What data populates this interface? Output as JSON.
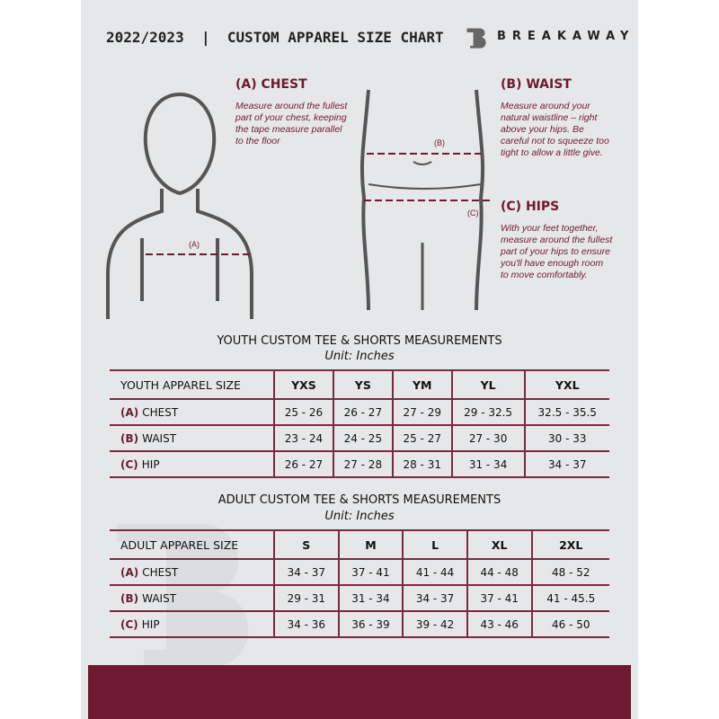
{
  "header": {
    "title": "2022/2023  |  CUSTOM APPAREL SIZE CHART",
    "brand": "BREAKAWAY"
  },
  "guides": {
    "chest": {
      "label": "(A)",
      "title": "(A) CHEST",
      "text": "Measure around the fullest part of your chest, keeping the tape measure parallel to the floor"
    },
    "waist": {
      "label": "(B)",
      "title": "(B) WAIST",
      "text": "Measure around your natural waistline – right above your hips. Be careful not to squeeze too tight to allow a little give."
    },
    "hips": {
      "label": "(C)",
      "title": "(C) HIPS",
      "text": "With your feet together, measure around the fullest part of your hips to ensure you'll have enough room to move comfortably."
    }
  },
  "youth": {
    "title": "YOUTH CUSTOM TEE & SHORTS MEASUREMENTS",
    "unit": "Unit: Inches",
    "header": [
      "YOUTH APPAREL SIZE",
      "YXS",
      "YS",
      "YM",
      "YL",
      "YXL"
    ],
    "rows": [
      {
        "code": "(A)",
        "name": "CHEST",
        "values": [
          "25 - 26",
          "26 - 27",
          "27 - 29",
          "29 - 32.5",
          "32.5 - 35.5"
        ]
      },
      {
        "code": "(B)",
        "name": "WAIST",
        "values": [
          "23 - 24",
          "24 - 25",
          "25 - 27",
          "27 - 30",
          "30 - 33"
        ]
      },
      {
        "code": "(C)",
        "name": "HIP",
        "values": [
          "26 - 27",
          "27 - 28",
          "28 - 31",
          "31 - 34",
          "34 - 37"
        ]
      }
    ]
  },
  "adult": {
    "title": "ADULT CUSTOM TEE & SHORTS MEASUREMENTS",
    "unit": "Unit: Inches",
    "header": [
      "ADULT APPAREL SIZE",
      "S",
      "M",
      "L",
      "XL",
      "2XL"
    ],
    "rows": [
      {
        "code": "(A)",
        "name": "CHEST",
        "values": [
          "34 - 37",
          "37 - 41",
          "41 - 44",
          "44 - 48",
          "48 - 52"
        ]
      },
      {
        "code": "(B)",
        "name": "WAIST",
        "values": [
          "29 - 31",
          "31 - 34",
          "34 - 37",
          "37 - 41",
          "41 - 45.5"
        ]
      },
      {
        "code": "(C)",
        "name": "HIP",
        "values": [
          "34 - 36",
          "36 - 39",
          "39 - 42",
          "43 - 46",
          "46 - 50"
        ]
      }
    ]
  },
  "colors": {
    "accent": "#6e1a30",
    "background": "#e6e7e8"
  }
}
